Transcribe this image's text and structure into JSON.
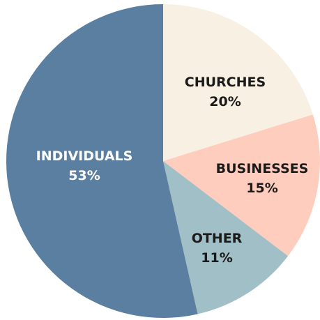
{
  "chart_data": {
    "type": "pie",
    "start_angle_deg": 0,
    "direction": "clockwise",
    "slices": [
      {
        "label": "CHURCHES",
        "percent_label": "20%",
        "value": 20,
        "color": "#f8f1e3",
        "text_color": "#1a1a1a"
      },
      {
        "label": "BUSINESSES",
        "percent_label": "15%",
        "value": 15,
        "color": "#ffcdbd",
        "text_color": "#1a1a1a"
      },
      {
        "label": "OTHER",
        "percent_label": "11%",
        "value": 11,
        "color": "#a1bfc6",
        "text_color": "#1a1a1a"
      },
      {
        "label": "INDIVIDUALS",
        "percent_label": "53%",
        "value": 53,
        "color": "#5b7fa0",
        "text_color": "#ffffff"
      }
    ]
  }
}
